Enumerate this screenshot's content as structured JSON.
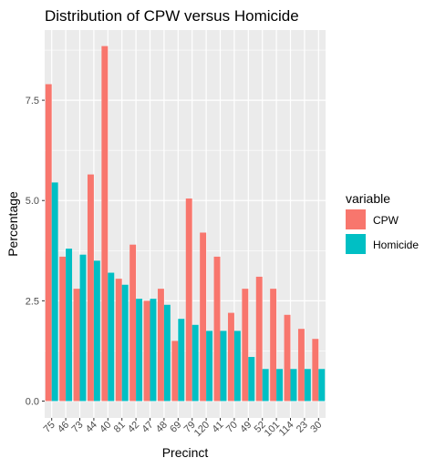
{
  "chart_data": {
    "type": "bar",
    "title": "Distribution of CPW versus Homicide",
    "xlabel": "Precinct",
    "ylabel": "Percentage",
    "categories": [
      "75",
      "46",
      "73",
      "44",
      "40",
      "81",
      "42",
      "47",
      "48",
      "69",
      "79",
      "120",
      "41",
      "70",
      "49",
      "52",
      "101",
      "114",
      "23",
      "30"
    ],
    "series": [
      {
        "name": "CPW",
        "color": "#F8766D",
        "values": [
          7.9,
          3.6,
          2.8,
          5.65,
          8.85,
          3.05,
          3.9,
          2.5,
          2.8,
          1.5,
          5.05,
          4.2,
          3.6,
          2.2,
          2.8,
          3.1,
          2.8,
          2.15,
          1.8,
          1.55
        ]
      },
      {
        "name": "Homicide",
        "color": "#00BFC4",
        "values": [
          5.45,
          3.8,
          3.65,
          3.5,
          3.2,
          2.9,
          2.55,
          2.55,
          2.4,
          2.05,
          1.9,
          1.75,
          1.75,
          1.75,
          1.1,
          0.8,
          0.8,
          0.8,
          0.8,
          0.8
        ]
      }
    ],
    "yticks": [
      "0.0",
      "2.5",
      "5.0",
      "7.5"
    ],
    "ytick_values": [
      0,
      2.5,
      5,
      7.5
    ],
    "ylim": [
      -0.42,
      9.25
    ],
    "legend": {
      "title": "variable",
      "position": "right"
    },
    "grid": true,
    "panel_color": "#EBEBEB"
  }
}
